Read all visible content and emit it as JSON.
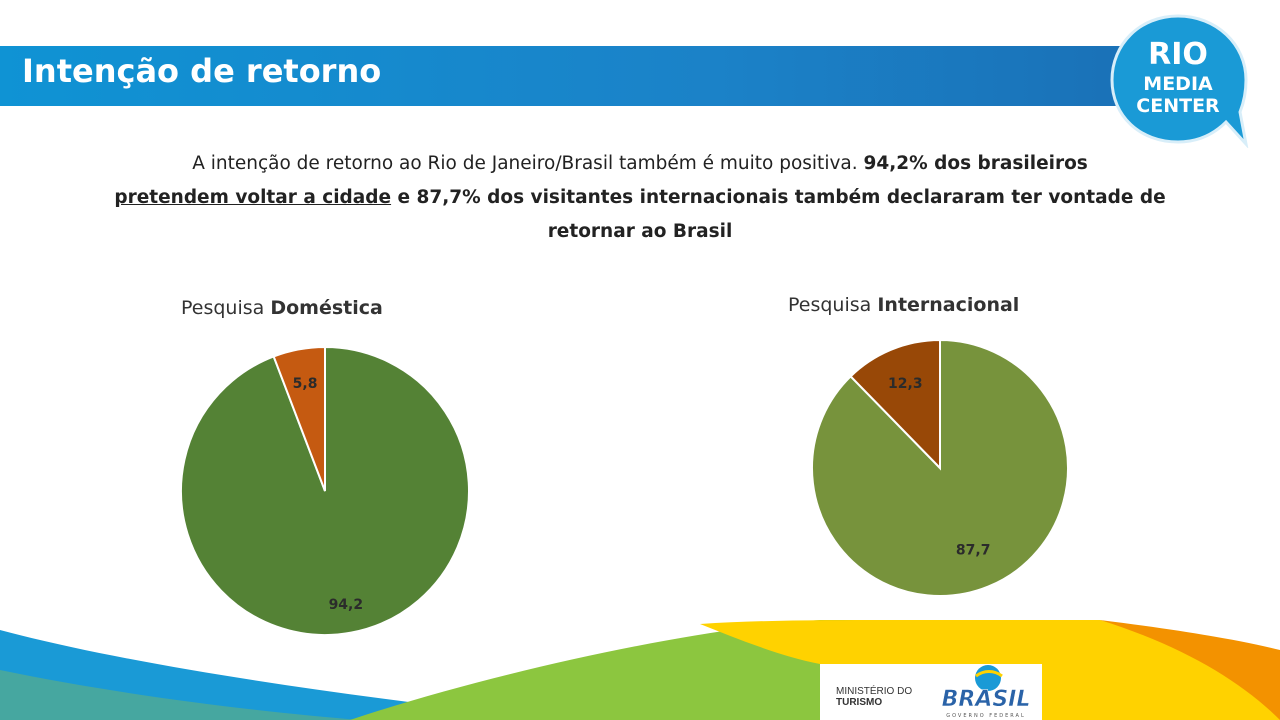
{
  "header": {
    "title": "Intenção de retorno",
    "logo_line1": "RIO",
    "logo_line2": "MEDIA",
    "logo_line3": "CENTER"
  },
  "intro": {
    "part1": "A intenção de retorno ao Rio de Janeiro/Brasil também é muito positiva. ",
    "part2": "94,2% dos brasileiros",
    "part3": "pretendem voltar a cidade",
    "part4": " e 87,7% dos visitantes internacionais também declararam ter vontade de retornar ao Brasil"
  },
  "chart_data": [
    {
      "type": "pie",
      "title_prefix": "Pesquisa ",
      "title_bold": "Doméstica",
      "slices": [
        {
          "value": 94.2,
          "label": "94,2",
          "color": "#548235"
        },
        {
          "value": 5.8,
          "label": "5,8",
          "color": "#c55a11"
        }
      ]
    },
    {
      "type": "pie",
      "title_prefix": "Pesquisa ",
      "title_bold": "Internacional",
      "slices": [
        {
          "value": 87.7,
          "label": "87,7",
          "color": "#77933c"
        },
        {
          "value": 12.3,
          "label": "12,3",
          "color": "#984807"
        }
      ]
    }
  ],
  "footer": {
    "ministry_line1": "MINISTÉRIO DO",
    "ministry_line2": "TURISMO",
    "brasil_text": "BRASIL",
    "governo_text": "GOVERNO FEDERAL"
  },
  "colors": {
    "title_bar": "#1b82c8",
    "logo_blue": "#1a9ad6",
    "footer_yellow": "#ffd200",
    "footer_green": "#8cc63f",
    "footer_orange": "#f39200"
  }
}
